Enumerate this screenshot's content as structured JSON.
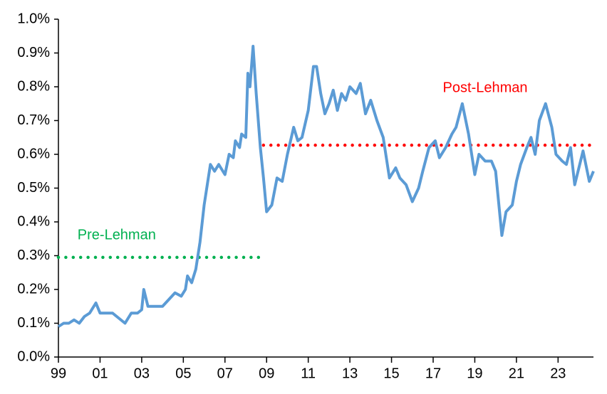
{
  "chart_data": {
    "type": "line",
    "x": [
      1999,
      1999.25,
      1999.5,
      1999.75,
      2000,
      2000.25,
      2000.5,
      2000.8,
      2001,
      2001.3,
      2001.6,
      2001.8,
      2002,
      2002.2,
      2002.5,
      2002.8,
      2003,
      2003.1,
      2003.3,
      2003.6,
      2004,
      2004.3,
      2004.6,
      2004.9,
      2005.1,
      2005.2,
      2005.4,
      2005.6,
      2005.8,
      2006,
      2006.3,
      2006.5,
      2006.7,
      2007,
      2007.2,
      2007.4,
      2007.5,
      2007.7,
      2007.8,
      2008,
      2008.1,
      2008.2,
      2008.35,
      2008.5,
      2008.7,
      2008.85,
      2009,
      2009.25,
      2009.5,
      2009.75,
      2010,
      2010.3,
      2010.5,
      2010.7,
      2011,
      2011.25,
      2011.4,
      2011.6,
      2011.8,
      2012,
      2012.2,
      2012.4,
      2012.6,
      2012.8,
      2013,
      2013.3,
      2013.5,
      2013.75,
      2014,
      2014.3,
      2014.6,
      2014.9,
      2015.2,
      2015.4,
      2015.7,
      2016,
      2016.3,
      2016.5,
      2016.8,
      2017.1,
      2017.3,
      2017.6,
      2017.9,
      2018.1,
      2018.4,
      2018.7,
      2019,
      2019.2,
      2019.5,
      2019.8,
      2020,
      2020.3,
      2020.5,
      2020.8,
      2021,
      2021.2,
      2021.5,
      2021.7,
      2021.9,
      2022.1,
      2022.4,
      2022.7,
      2022.9,
      2023.2,
      2023.4,
      2023.6,
      2023.8,
      2024.2,
      2024.5,
      2024.7
    ],
    "values": [
      0.09,
      0.1,
      0.1,
      0.11,
      0.1,
      0.12,
      0.13,
      0.16,
      0.13,
      0.13,
      0.13,
      0.12,
      0.11,
      0.1,
      0.13,
      0.13,
      0.14,
      0.2,
      0.15,
      0.15,
      0.15,
      0.17,
      0.19,
      0.18,
      0.2,
      0.24,
      0.22,
      0.26,
      0.34,
      0.45,
      0.57,
      0.55,
      0.57,
      0.54,
      0.6,
      0.59,
      0.64,
      0.62,
      0.66,
      0.65,
      0.84,
      0.8,
      0.92,
      0.78,
      0.62,
      0.53,
      0.43,
      0.45,
      0.53,
      0.52,
      0.6,
      0.68,
      0.64,
      0.65,
      0.73,
      0.86,
      0.86,
      0.78,
      0.72,
      0.75,
      0.79,
      0.73,
      0.78,
      0.76,
      0.8,
      0.78,
      0.81,
      0.72,
      0.76,
      0.7,
      0.65,
      0.53,
      0.56,
      0.53,
      0.51,
      0.46,
      0.5,
      0.55,
      0.62,
      0.64,
      0.59,
      0.62,
      0.66,
      0.68,
      0.75,
      0.66,
      0.54,
      0.6,
      0.58,
      0.58,
      0.55,
      0.36,
      0.43,
      0.45,
      0.52,
      0.57,
      0.62,
      0.65,
      0.6,
      0.7,
      0.75,
      0.68,
      0.6,
      0.58,
      0.57,
      0.62,
      0.51,
      0.61,
      0.52,
      0.55
    ],
    "color": "#5b9bd5",
    "xlim": [
      1999,
      2024.7
    ],
    "xticks": [
      {
        "value": 1999,
        "label": "99"
      },
      {
        "value": 2001,
        "label": "01"
      },
      {
        "value": 2003,
        "label": "03"
      },
      {
        "value": 2005,
        "label": "05"
      },
      {
        "value": 2007,
        "label": "07"
      },
      {
        "value": 2009,
        "label": "09"
      },
      {
        "value": 2011,
        "label": "11"
      },
      {
        "value": 2013,
        "label": "13"
      },
      {
        "value": 2015,
        "label": "15"
      },
      {
        "value": 2017,
        "label": "17"
      },
      {
        "value": 2019,
        "label": "19"
      },
      {
        "value": 2021,
        "label": "21"
      },
      {
        "value": 2023,
        "label": "23"
      }
    ],
    "ylim": [
      0,
      1
    ],
    "yticks": [
      {
        "value": 0,
        "label": "0.0%"
      },
      {
        "value": 0.1,
        "label": "0.1%"
      },
      {
        "value": 0.2,
        "label": "0.2%"
      },
      {
        "value": 0.3,
        "label": "0.3%"
      },
      {
        "value": 0.4,
        "label": "0.4%"
      },
      {
        "value": 0.5,
        "label": "0.5%"
      },
      {
        "value": 0.6,
        "label": "0.6%"
      },
      {
        "value": 0.7,
        "label": "0.7%"
      },
      {
        "value": 0.8,
        "label": "0.8%"
      },
      {
        "value": 0.9,
        "label": "0.9%"
      },
      {
        "value": 1,
        "label": "1.0%"
      }
    ],
    "grid": false,
    "reference_lines": [
      {
        "label": "Pre-Lehman",
        "value": 0.295,
        "x": [
          1999,
          2008.7
        ],
        "color": "#00b050",
        "label_at": [
          2001.8,
          0.36
        ]
      },
      {
        "label": "Post-Lehman",
        "value": 0.627,
        "x": [
          2008.85,
          2024.7
        ],
        "color": "#ff0000",
        "label_at": [
          2019.5,
          0.795
        ]
      }
    ]
  }
}
